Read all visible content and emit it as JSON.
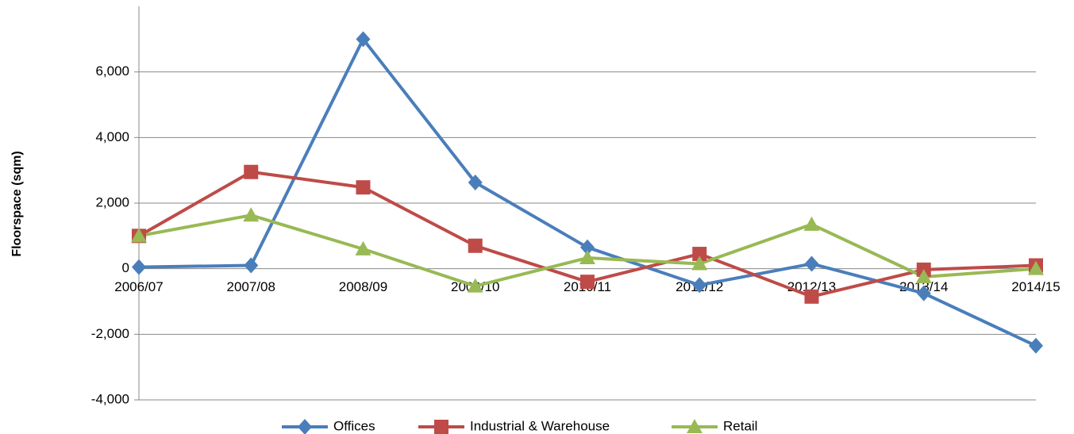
{
  "chart_data": {
    "type": "line",
    "y_label": "Floorspace  (sqm)",
    "categories": [
      "2006/07",
      "2007/08",
      "2008/09",
      "2009/10",
      "2010/11",
      "2011/12",
      "2012/13",
      "2013/14",
      "2014/15"
    ],
    "series": [
      {
        "name": "Offices",
        "color": "#4a7ebb",
        "marker": "diamond",
        "values": [
          50,
          100,
          7000,
          2630,
          650,
          -500,
          150,
          -750,
          -2350
        ]
      },
      {
        "name": "Industrial & Warehouse",
        "color": "#be4b48",
        "marker": "square",
        "values": [
          1000,
          2950,
          2480,
          700,
          -400,
          450,
          -850,
          -30,
          100
        ]
      },
      {
        "name": "Retail",
        "color": "#98b954",
        "marker": "triangle",
        "values": [
          1000,
          1630,
          600,
          -530,
          330,
          150,
          1350,
          -250,
          0
        ]
      }
    ],
    "ylim": [
      -4000,
      8000
    ],
    "yticks": [
      {
        "value": -4000,
        "label": "-4,000"
      },
      {
        "value": -2000,
        "label": "-2,000"
      },
      0,
      {
        "value": 2000,
        "label": "2,000"
      },
      {
        "value": 4000,
        "label": "4,000"
      },
      {
        "value": 6000,
        "label": "6,000"
      }
    ],
    "grid": true,
    "legend": "bottom"
  }
}
